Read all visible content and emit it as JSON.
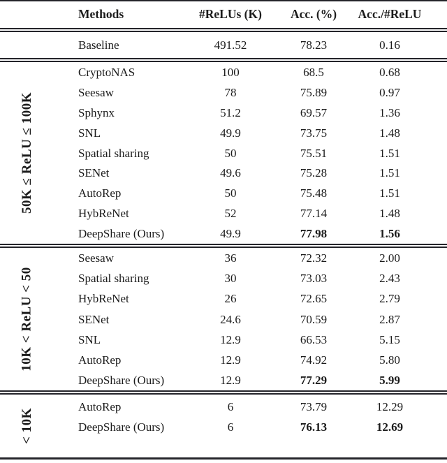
{
  "table": {
    "columns": {
      "methods": "Methods",
      "relus": "#ReLUs (K)",
      "acc": "Acc. (%)",
      "ratio": "Acc./#ReLU"
    },
    "baseline": {
      "method": "Baseline",
      "relus": "491.52",
      "acc": "78.23",
      "ratio": "0.16"
    },
    "groups": [
      {
        "label": "50K ≤ ReLU ≤ 100K",
        "rows": [
          {
            "method": "CryptoNAS",
            "relus": "100",
            "acc": "68.5",
            "ratio": "0.68",
            "bold": false
          },
          {
            "method": "Seesaw",
            "relus": "78",
            "acc": "75.89",
            "ratio": "0.97",
            "bold": false
          },
          {
            "method": "Sphynx",
            "relus": "51.2",
            "acc": "69.57",
            "ratio": "1.36",
            "bold": false
          },
          {
            "method": "SNL",
            "relus": "49.9",
            "acc": "73.75",
            "ratio": "1.48",
            "bold": false
          },
          {
            "method": "Spatial sharing",
            "relus": "50",
            "acc": "75.51",
            "ratio": "1.51",
            "bold": false
          },
          {
            "method": "SENet",
            "relus": "49.6",
            "acc": "75.28",
            "ratio": "1.51",
            "bold": false
          },
          {
            "method": "AutoRep",
            "relus": "50",
            "acc": "75.48",
            "ratio": "1.51",
            "bold": false
          },
          {
            "method": "HybReNet",
            "relus": "52",
            "acc": "77.14",
            "ratio": "1.48",
            "bold": false
          },
          {
            "method": "DeepShare (Ours)",
            "relus": "49.9",
            "acc": "77.98",
            "ratio": "1.56",
            "bold": true
          }
        ]
      },
      {
        "label": "10K < ReLU < 50",
        "rows": [
          {
            "method": "Seesaw",
            "relus": "36",
            "acc": "72.32",
            "ratio": "2.00",
            "bold": false
          },
          {
            "method": "Spatial sharing",
            "relus": "30",
            "acc": "73.03",
            "ratio": "2.43",
            "bold": false
          },
          {
            "method": "HybReNet",
            "relus": "26",
            "acc": "72.65",
            "ratio": "2.79",
            "bold": false
          },
          {
            "method": "SENet",
            "relus": "24.6",
            "acc": "70.59",
            "ratio": "2.87",
            "bold": false
          },
          {
            "method": "SNL",
            "relus": "12.9",
            "acc": "66.53",
            "ratio": "5.15",
            "bold": false
          },
          {
            "method": "AutoRep",
            "relus": "12.9",
            "acc": "74.92",
            "ratio": "5.80",
            "bold": false
          },
          {
            "method": "DeepShare (Ours)",
            "relus": "12.9",
            "acc": "77.29",
            "ratio": "5.99",
            "bold": true
          }
        ]
      },
      {
        "label": "< 10K",
        "rows": [
          {
            "method": "AutoRep",
            "relus": "6",
            "acc": "73.79",
            "ratio": "12.29",
            "bold": false
          },
          {
            "method": "DeepShare (Ours)",
            "relus": "6",
            "acc": "76.13",
            "ratio": "12.69",
            "bold": true
          }
        ]
      }
    ]
  }
}
